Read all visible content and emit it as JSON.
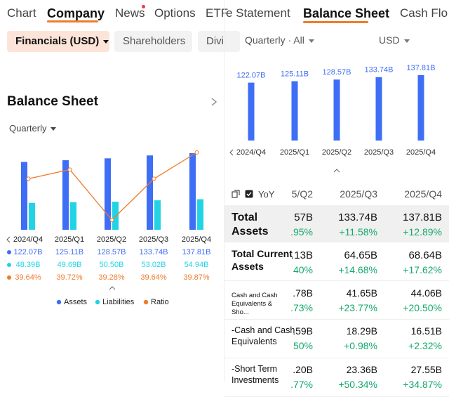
{
  "left_panel": {
    "tabs": [
      "Chart",
      "Company",
      "News",
      "Options",
      "ETF"
    ],
    "chips": [
      "Financials (USD)",
      "Shareholders",
      "Divi"
    ],
    "section_title": "Balance Sheet",
    "period": "Quarterly",
    "chart": {
      "categories": [
        "2024/Q4",
        "2025/Q1",
        "2025/Q2",
        "2025/Q3",
        "2025/Q4"
      ],
      "series": [
        {
          "name": "Assets",
          "color": "#3d6ef5",
          "values": [
            122.07,
            125.11,
            128.57,
            133.74,
            137.81
          ],
          "value_labels": [
            "122.07B",
            "125.11B",
            "128.57B",
            "133.74B",
            "137.81B"
          ]
        },
        {
          "name": "Liabilities",
          "color": "#22d3e6",
          "values": [
            48.39,
            49.69,
            50.5,
            53.02,
            54.94
          ],
          "value_labels": [
            "48.39B",
            "49.69B",
            "50.50B",
            "53.02B",
            "54.94B"
          ]
        },
        {
          "name": "Ratio",
          "color": "#f07b2b",
          "values": [
            39.64,
            39.72,
            39.28,
            39.64,
            39.87
          ],
          "value_labels": [
            "39.64%",
            "39.72%",
            "39.28%",
            "39.64%",
            "39.87%"
          ]
        }
      ]
    }
  },
  "right_panel": {
    "tabs": [
      "e Statement",
      "Balance Sheet",
      "Cash Flo"
    ],
    "period": "Quarterly · All",
    "currency": "USD",
    "chart": {
      "categories": [
        "2024/Q4",
        "2025/Q1",
        "2025/Q2",
        "2025/Q3",
        "2025/Q4"
      ],
      "values": [
        122.07,
        125.11,
        128.57,
        133.74,
        137.81
      ],
      "value_labels": [
        "122.07B",
        "125.11B",
        "128.57B",
        "133.74B",
        "137.81B"
      ],
      "color": "#3d6ef5"
    },
    "table": {
      "toggle": "YoY",
      "columns": [
        "5/Q2",
        "2025/Q3",
        "2025/Q4"
      ],
      "rows": [
        {
          "label": "Total Assets",
          "cells": [
            [
              "57B",
              ".95%"
            ],
            [
              "133.74B",
              "+11.58%"
            ],
            [
              "137.81B",
              "+12.89%"
            ]
          ]
        },
        {
          "label": "Total Current Assets",
          "cells": [
            [
              ".13B",
              "40%"
            ],
            [
              "64.65B",
              "+14.68%"
            ],
            [
              "68.64B",
              "+17.62%"
            ]
          ]
        },
        {
          "label": "Cash and Cash Equivalents & Sho...",
          "cells": [
            [
              ".78B",
              ".73%"
            ],
            [
              "41.65B",
              "+23.77%"
            ],
            [
              "44.06B",
              "+20.50%"
            ]
          ]
        },
        {
          "label": "-Cash and Cash Equivalents",
          "cells": [
            [
              ".59B",
              "50%"
            ],
            [
              "18.29B",
              "+0.98%"
            ],
            [
              "16.51B",
              "+2.32%"
            ]
          ]
        },
        {
          "label": "-Short Term Investments",
          "cells": [
            [
              ".20B",
              ".77%"
            ],
            [
              "23.36B",
              "+50.34%"
            ],
            [
              "27.55B",
              "+34.87%"
            ]
          ]
        }
      ]
    }
  }
}
